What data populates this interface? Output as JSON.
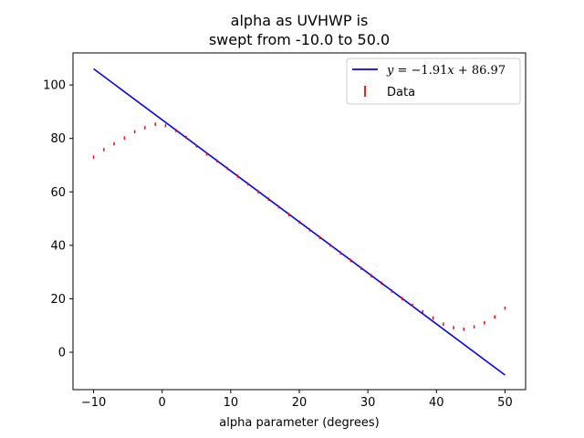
{
  "chart_data": {
    "type": "scatter",
    "title_lines": [
      "alpha as UVHWP is",
      "swept from -10.0 to 50.0"
    ],
    "xlabel": "alpha parameter (degrees)",
    "ylabel": "",
    "xlim": [
      -13,
      53
    ],
    "ylim": [
      -14,
      112
    ],
    "xticks": [
      -10,
      0,
      10,
      20,
      30,
      40,
      50
    ],
    "yticks": [
      0,
      20,
      40,
      60,
      80,
      100
    ],
    "grid": false,
    "legend_position": "top-right",
    "series": [
      {
        "name": "y = -1.91x + 86.97",
        "kind": "line",
        "color": "#0000ff",
        "slope": -1.91,
        "intercept": 86.97,
        "x": [
          -10,
          50
        ],
        "y": [
          106.07,
          -8.53
        ]
      },
      {
        "name": "Data",
        "kind": "errorbar",
        "color": "#ff0000",
        "x": [
          -10,
          -8.5,
          -7,
          -5.5,
          -4,
          -2.5,
          -1,
          0.5,
          2,
          3.5,
          5,
          6.5,
          8,
          9.5,
          11,
          12.5,
          14,
          15.5,
          17,
          18.5,
          20,
          21.5,
          23,
          24.5,
          26,
          27.5,
          29,
          30.5,
          32,
          33.5,
          35,
          36.5,
          38,
          39.5,
          41,
          42.5,
          44,
          45.5,
          47,
          48.5,
          50
        ],
        "y": [
          73.0,
          75.8,
          78.0,
          80.2,
          82.5,
          84.0,
          85.3,
          84.8,
          83.0,
          80.4,
          77.2,
          74.2,
          71.6,
          68.8,
          65.9,
          63.0,
          60.1,
          57.3,
          54.4,
          51.5,
          48.7,
          45.8,
          42.9,
          40.1,
          37.2,
          34.3,
          31.4,
          28.6,
          25.8,
          22.9,
          20.1,
          17.6,
          15.2,
          12.8,
          10.5,
          9.2,
          8.6,
          9.5,
          11.0,
          13.2,
          16.5
        ],
        "yerr": 0.6
      }
    ],
    "legend_entries": [
      "y = -1.91x + 86.97",
      "Data"
    ],
    "colors": {
      "line": "#0000ff",
      "data": "#ff0000",
      "axes": "#000000"
    }
  }
}
